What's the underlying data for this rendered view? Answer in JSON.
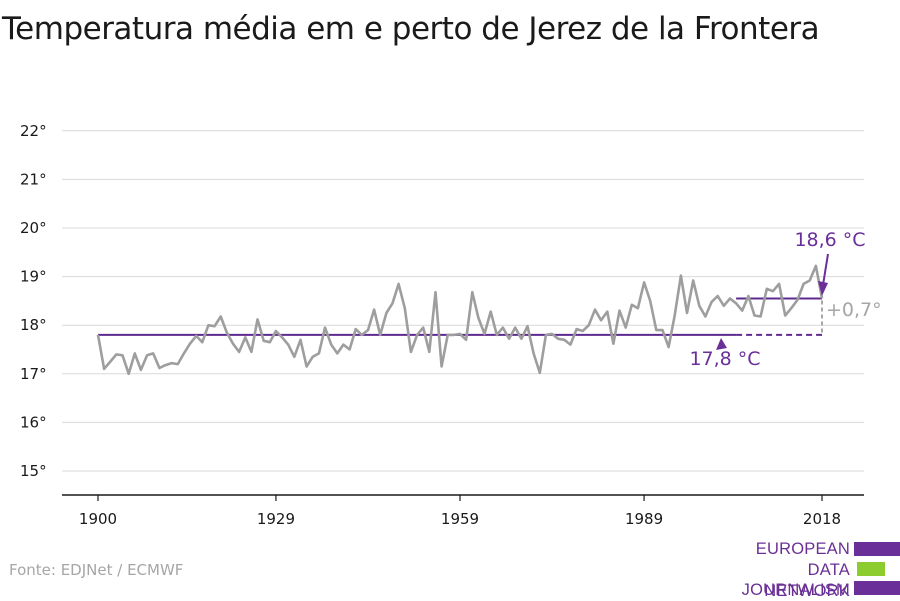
{
  "title": "Temperatura média em e perto de Jerez de la Frontera",
  "source": "Fonte: EDJNet / ECMWF",
  "logo": {
    "line1": "EUROPEAN",
    "line2": "DATA JOURNALISM",
    "line3": "NETWORK",
    "colors": [
      "#6b2f99",
      "#8ccc2e",
      "#6b2f99"
    ]
  },
  "colors": {
    "series": "#9e9e9e",
    "baseline": "#5f2a8f",
    "recent": "#5f2a8f",
    "annotation": "#6b2f99",
    "difference": "#a6a6a6",
    "grid": "#d9d9d9",
    "axis": "#1a1a1a"
  },
  "chart_data": {
    "type": "line",
    "ylim": [
      14.5,
      22.5
    ],
    "xlim": [
      1900,
      2018
    ],
    "y_ticks": [
      15,
      16,
      17,
      18,
      19,
      20,
      21,
      22
    ],
    "y_tick_labels": [
      "15°",
      "16°",
      "17°",
      "18°",
      "19°",
      "20°",
      "21°",
      "22°"
    ],
    "x_ticks": [
      1900,
      1929,
      1959,
      1989,
      2018
    ],
    "x_tick_labels": [
      "1900",
      "1929",
      "1959",
      "1989",
      "2018"
    ],
    "grid": true,
    "x": [
      1900,
      1901,
      1902,
      1903,
      1904,
      1905,
      1906,
      1907,
      1908,
      1909,
      1910,
      1911,
      1912,
      1913,
      1914,
      1915,
      1916,
      1917,
      1918,
      1919,
      1920,
      1921,
      1922,
      1923,
      1924,
      1925,
      1926,
      1927,
      1928,
      1929,
      1930,
      1931,
      1932,
      1933,
      1934,
      1935,
      1936,
      1937,
      1938,
      1939,
      1940,
      1941,
      1942,
      1943,
      1944,
      1945,
      1946,
      1947,
      1948,
      1949,
      1950,
      1951,
      1952,
      1953,
      1954,
      1955,
      1956,
      1957,
      1958,
      1959,
      1960,
      1961,
      1962,
      1963,
      1964,
      1965,
      1966,
      1967,
      1968,
      1969,
      1970,
      1971,
      1972,
      1973,
      1974,
      1975,
      1976,
      1977,
      1978,
      1979,
      1980,
      1981,
      1982,
      1983,
      1984,
      1985,
      1986,
      1987,
      1988,
      1989,
      1990,
      1991,
      1992,
      1993,
      1994,
      1995,
      1996,
      1997,
      1998,
      1999,
      2000,
      2001,
      2002,
      2003,
      2004,
      2005,
      2006,
      2007,
      2008,
      2009,
      2010,
      2011,
      2012,
      2013,
      2014,
      2015,
      2016,
      2017,
      2018
    ],
    "series": [
      {
        "values": [
          17.8,
          17.1,
          17.25,
          17.4,
          17.38,
          17.0,
          17.42,
          17.08,
          17.38,
          17.42,
          17.12,
          17.18,
          17.22,
          17.2,
          17.42,
          17.62,
          17.78,
          17.65,
          18.0,
          17.98,
          18.18,
          17.85,
          17.62,
          17.45,
          17.75,
          17.45,
          18.12,
          17.68,
          17.65,
          17.88,
          17.75,
          17.6,
          17.35,
          17.7,
          17.15,
          17.35,
          17.42,
          17.95,
          17.6,
          17.42,
          17.6,
          17.5,
          17.92,
          17.8,
          17.9,
          18.32,
          17.8,
          18.25,
          18.45,
          18.85,
          18.35,
          17.45,
          17.8,
          17.95,
          17.45,
          18.68,
          17.15,
          17.8,
          17.8,
          17.82,
          17.7,
          18.68,
          18.15,
          17.82,
          18.28,
          17.8,
          17.95,
          17.72,
          17.95,
          17.72,
          17.98,
          17.42,
          17.02,
          17.8,
          17.82,
          17.72,
          17.7,
          17.6,
          17.92,
          17.88,
          18.0,
          18.32,
          18.1,
          18.28,
          17.62,
          18.3,
          17.95,
          18.42,
          18.35,
          18.88,
          18.5,
          17.9,
          17.9,
          17.55,
          18.2,
          19.02,
          18.25,
          18.92,
          18.4,
          18.18,
          18.48,
          18.6,
          18.4,
          18.55,
          18.45,
          18.3,
          18.6,
          18.2,
          18.18,
          18.75,
          18.7,
          18.85,
          18.2,
          18.35,
          18.52,
          18.85,
          18.92,
          19.22,
          18.55
        ]
      }
    ],
    "baseline_value": 17.8,
    "baseline_range": [
      1900,
      2018
    ],
    "recent_value": 18.55,
    "recent_range": [
      2004,
      2018
    ],
    "annotations": {
      "recent_label": "18,6 °C",
      "baseline_label": "17,8 °C",
      "difference_label": "+0,7°"
    }
  }
}
